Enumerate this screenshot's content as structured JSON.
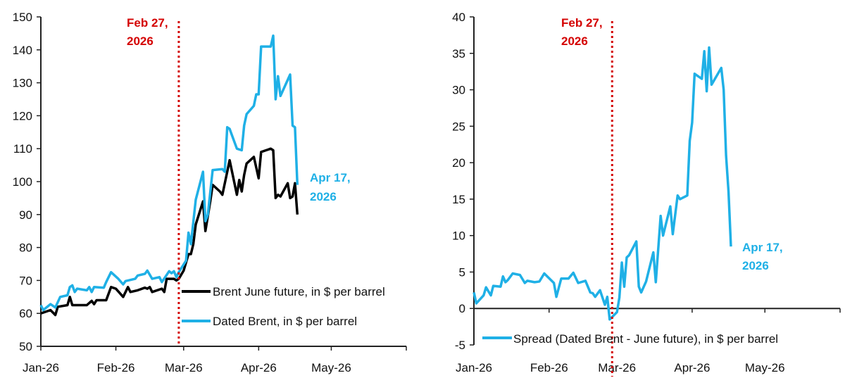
{
  "colors": {
    "brent_june": "#000000",
    "dated_brent": "#1fb0e6",
    "spread": "#1fb0e6",
    "event_line": "#d40000"
  },
  "chart_data": [
    {
      "type": "line",
      "x_ticks": [
        "Jan-26",
        "Feb-26",
        "Mar-26",
        "Apr-26",
        "May-26"
      ],
      "x_range": [
        "2026-01-01",
        "2026-06-01"
      ],
      "ylim": [
        50,
        150
      ],
      "y_ticks": [
        "50",
        "60",
        "70",
        "80",
        "90",
        "100",
        "110",
        "120",
        "130",
        "140",
        "150"
      ],
      "grid": false,
      "legend_placement": "bottom-right",
      "event_line": {
        "date": "2026-02-27",
        "label_line1": "Feb 27,",
        "label_line2": "2026"
      },
      "end_label": {
        "line1": "Apr 17,",
        "line2": "2026"
      },
      "series": [
        {
          "name": "Brent June future, in $ per barrel",
          "color_key": "brent_june",
          "points": [
            [
              "2026-01-01",
              60
            ],
            [
              "2026-01-03",
              60.5
            ],
            [
              "2026-01-05",
              61
            ],
            [
              "2026-01-07",
              59.5
            ],
            [
              "2026-01-08",
              62
            ],
            [
              "2026-01-12",
              62.5
            ],
            [
              "2026-01-13",
              65
            ],
            [
              "2026-01-14",
              62.5
            ],
            [
              "2026-01-20",
              62.5
            ],
            [
              "2026-01-22",
              63.8
            ],
            [
              "2026-01-23",
              62.8
            ],
            [
              "2026-01-24",
              64
            ],
            [
              "2026-01-28",
              64
            ],
            [
              "2026-01-30",
              68
            ],
            [
              "2026-02-01",
              67.5
            ],
            [
              "2026-02-04",
              65
            ],
            [
              "2026-02-06",
              68
            ],
            [
              "2026-02-07",
              66.5
            ],
            [
              "2026-02-10",
              67
            ],
            [
              "2026-02-13",
              67.8
            ],
            [
              "2026-02-14",
              67.5
            ],
            [
              "2026-02-15",
              68
            ],
            [
              "2026-02-16",
              66.5
            ],
            [
              "2026-02-20",
              67.5
            ],
            [
              "2026-02-21",
              66.5
            ],
            [
              "2026-02-22",
              70.5
            ],
            [
              "2026-02-25",
              70.5
            ],
            [
              "2026-02-26",
              70
            ],
            [
              "2026-02-27",
              70.5
            ],
            [
              "2026-03-01",
              73
            ],
            [
              "2026-03-03",
              78
            ],
            [
              "2026-03-04",
              78
            ],
            [
              "2026-03-05",
              81
            ],
            [
              "2026-03-06",
              87
            ],
            [
              "2026-03-09",
              94
            ],
            [
              "2026-03-10",
              85
            ],
            [
              "2026-03-12",
              94
            ],
            [
              "2026-03-13",
              99
            ],
            [
              "2026-03-16",
              97
            ],
            [
              "2026-03-17",
              96
            ],
            [
              "2026-03-19",
              103
            ],
            [
              "2026-03-20",
              106.5
            ],
            [
              "2026-03-23",
              96
            ],
            [
              "2026-03-24",
              100.5
            ],
            [
              "2026-03-25",
              97
            ],
            [
              "2026-03-26",
              102
            ],
            [
              "2026-03-27",
              105.5
            ],
            [
              "2026-03-30",
              107.5
            ],
            [
              "2026-04-01",
              101
            ],
            [
              "2026-04-02",
              109
            ],
            [
              "2026-04-06",
              110
            ],
            [
              "2026-04-07",
              109.5
            ],
            [
              "2026-04-08",
              95
            ],
            [
              "2026-04-09",
              96
            ],
            [
              "2026-04-10",
              95.5
            ],
            [
              "2026-04-13",
              99.5
            ],
            [
              "2026-04-14",
              95
            ],
            [
              "2026-04-15",
              95.5
            ],
            [
              "2026-04-16",
              99.5
            ],
            [
              "2026-04-17",
              90
            ]
          ]
        },
        {
          "name": "Dated Brent, in $ per barrel",
          "color_key": "dated_brent",
          "points": [
            [
              "2026-01-01",
              62.5
            ],
            [
              "2026-01-02",
              61
            ],
            [
              "2026-01-05",
              62.8
            ],
            [
              "2026-01-07",
              61.8
            ],
            [
              "2026-01-09",
              65
            ],
            [
              "2026-01-12",
              65.5
            ],
            [
              "2026-01-13",
              68
            ],
            [
              "2026-01-14",
              68.5
            ],
            [
              "2026-01-15",
              66.5
            ],
            [
              "2026-01-16",
              67.5
            ],
            [
              "2026-01-20",
              67
            ],
            [
              "2026-01-21",
              68
            ],
            [
              "2026-01-22",
              66.5
            ],
            [
              "2026-01-23",
              68
            ],
            [
              "2026-01-27",
              67.8
            ],
            [
              "2026-01-28",
              69.5
            ],
            [
              "2026-01-30",
              72.5
            ],
            [
              "2026-02-02",
              70.5
            ],
            [
              "2026-02-04",
              68.8
            ],
            [
              "2026-02-05",
              69.8
            ],
            [
              "2026-02-09",
              70.5
            ],
            [
              "2026-02-10",
              71.5
            ],
            [
              "2026-02-13",
              72
            ],
            [
              "2026-02-14",
              73
            ],
            [
              "2026-02-16",
              70.5
            ],
            [
              "2026-02-19",
              71
            ],
            [
              "2026-02-20",
              69.5
            ],
            [
              "2026-02-23",
              72.8
            ],
            [
              "2026-02-24",
              72.2
            ],
            [
              "2026-02-25",
              72.8
            ],
            [
              "2026-02-26",
              71
            ],
            [
              "2026-02-27",
              72.5
            ],
            [
              "2026-03-02",
              76
            ],
            [
              "2026-03-03",
              84.5
            ],
            [
              "2026-03-04",
              81
            ],
            [
              "2026-03-06",
              94.5
            ],
            [
              "2026-03-09",
              103
            ],
            [
              "2026-03-10",
              88
            ],
            [
              "2026-03-11",
              90
            ],
            [
              "2026-03-13",
              103.5
            ],
            [
              "2026-03-17",
              103.8
            ],
            [
              "2026-03-18",
              103
            ],
            [
              "2026-03-19",
              116.5
            ],
            [
              "2026-03-20",
              116
            ],
            [
              "2026-03-23",
              110
            ],
            [
              "2026-03-25",
              109.5
            ],
            [
              "2026-03-26",
              117
            ],
            [
              "2026-03-27",
              120.5
            ],
            [
              "2026-03-30",
              123
            ],
            [
              "2026-03-31",
              126.5
            ],
            [
              "2026-04-01",
              126.5
            ],
            [
              "2026-04-02",
              141
            ],
            [
              "2026-04-06",
              141
            ],
            [
              "2026-04-07",
              144.3
            ],
            [
              "2026-04-08",
              125
            ],
            [
              "2026-04-09",
              132
            ],
            [
              "2026-04-10",
              126
            ],
            [
              "2026-04-14",
              132.5
            ],
            [
              "2026-04-15",
              117
            ],
            [
              "2026-04-16",
              116.5
            ],
            [
              "2026-04-17",
              99
            ]
          ]
        }
      ]
    },
    {
      "type": "line",
      "x_ticks": [
        "Jan-26",
        "Feb-26",
        "Mar-26",
        "Apr-26",
        "May-26"
      ],
      "x_range": [
        "2026-01-01",
        "2026-06-01"
      ],
      "ylim": [
        -5,
        40
      ],
      "y_ticks": [
        "-5",
        "0",
        "5",
        "10",
        "15",
        "20",
        "25",
        "30",
        "35",
        "40"
      ],
      "grid": false,
      "legend_placement": "bottom",
      "event_line": {
        "date": "2026-02-27",
        "label_line1": "Feb 27,",
        "label_line2": "2026"
      },
      "end_label": {
        "line1": "Apr 17,",
        "line2": "2026"
      },
      "series": [
        {
          "name": "Spread (Dated Brent - June future), in $ per barrel",
          "color_key": "spread",
          "points": [
            [
              "2026-01-01",
              2.2
            ],
            [
              "2026-01-02",
              0.7
            ],
            [
              "2026-01-05",
              1.8
            ],
            [
              "2026-01-06",
              2.9
            ],
            [
              "2026-01-08",
              1.8
            ],
            [
              "2026-01-09",
              3.1
            ],
            [
              "2026-01-12",
              3
            ],
            [
              "2026-01-13",
              4.4
            ],
            [
              "2026-01-14",
              3.6
            ],
            [
              "2026-01-15",
              3.9
            ],
            [
              "2026-01-17",
              4.8
            ],
            [
              "2026-01-20",
              4.6
            ],
            [
              "2026-01-22",
              3.5
            ],
            [
              "2026-01-23",
              3.8
            ],
            [
              "2026-01-26",
              3.6
            ],
            [
              "2026-01-28",
              3.7
            ],
            [
              "2026-01-30",
              4.8
            ],
            [
              "2026-02-03",
              3.5
            ],
            [
              "2026-02-04",
              1.6
            ],
            [
              "2026-02-06",
              4.1
            ],
            [
              "2026-02-09",
              4.1
            ],
            [
              "2026-02-11",
              4.9
            ],
            [
              "2026-02-13",
              3.5
            ],
            [
              "2026-02-16",
              3.8
            ],
            [
              "2026-02-18",
              2.2
            ],
            [
              "2026-02-19",
              2.1
            ],
            [
              "2026-02-20",
              1.6
            ],
            [
              "2026-02-22",
              2.5
            ],
            [
              "2026-02-24",
              0.5
            ],
            [
              "2026-02-25",
              1.6
            ],
            [
              "2026-02-26",
              -1.5
            ],
            [
              "2026-03-01",
              -0.5
            ],
            [
              "2026-03-02",
              1.5
            ],
            [
              "2026-03-03",
              6.3
            ],
            [
              "2026-03-04",
              3
            ],
            [
              "2026-03-05",
              7
            ],
            [
              "2026-03-06",
              7.3
            ],
            [
              "2026-03-09",
              9.2
            ],
            [
              "2026-03-10",
              3
            ],
            [
              "2026-03-11",
              2.2
            ],
            [
              "2026-03-13",
              3.7
            ],
            [
              "2026-03-16",
              7.7
            ],
            [
              "2026-03-17",
              3.6
            ],
            [
              "2026-03-19",
              12.7
            ],
            [
              "2026-03-20",
              10
            ],
            [
              "2026-03-23",
              14
            ],
            [
              "2026-03-24",
              10.2
            ],
            [
              "2026-03-26",
              15.5
            ],
            [
              "2026-03-27",
              15
            ],
            [
              "2026-03-30",
              15.5
            ],
            [
              "2026-03-31",
              23
            ],
            [
              "2026-04-01",
              25.5
            ],
            [
              "2026-04-02",
              32.2
            ],
            [
              "2026-04-05",
              31.5
            ],
            [
              "2026-04-06",
              35.3
            ],
            [
              "2026-04-07",
              29.8
            ],
            [
              "2026-04-08",
              35.8
            ],
            [
              "2026-04-09",
              30.7
            ],
            [
              "2026-04-13",
              33
            ],
            [
              "2026-04-14",
              30
            ],
            [
              "2026-04-15",
              21
            ],
            [
              "2026-04-16",
              16
            ],
            [
              "2026-04-17",
              8.5
            ]
          ]
        }
      ]
    }
  ]
}
